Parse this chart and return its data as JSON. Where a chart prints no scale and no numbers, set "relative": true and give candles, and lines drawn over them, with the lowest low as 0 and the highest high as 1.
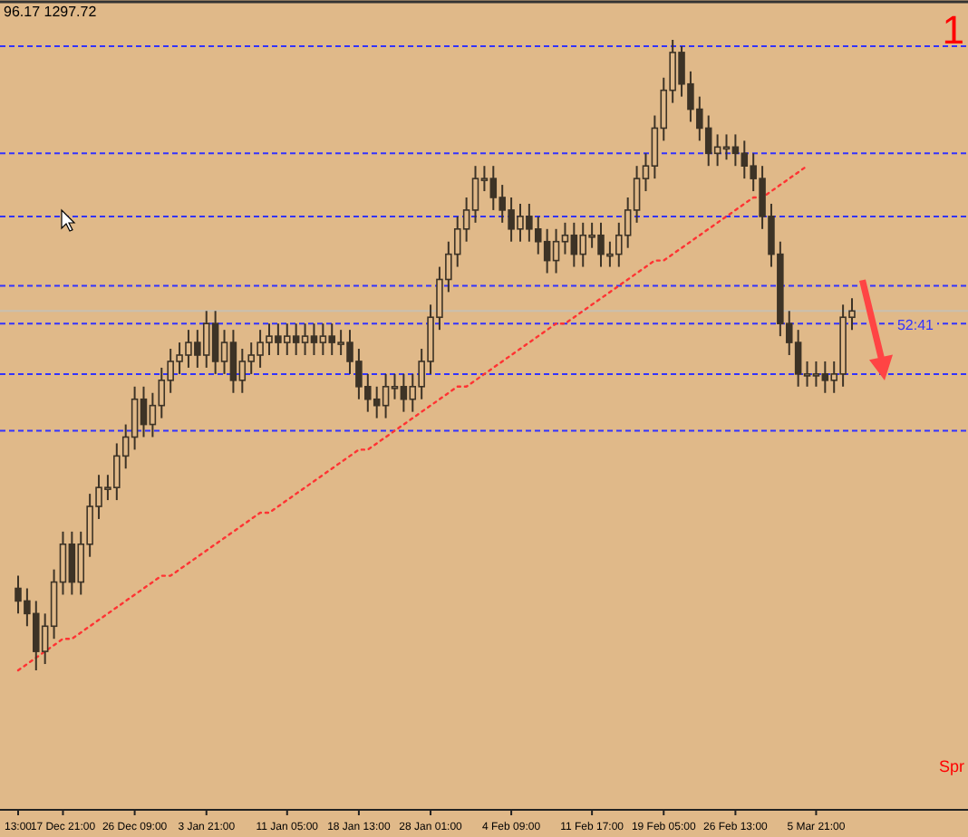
{
  "chart_data": {
    "type": "candlestick",
    "relative": true,
    "categories": [
      "13:00",
      null,
      null,
      null,
      null,
      "17 Dec 21:00",
      null,
      null,
      null,
      null,
      null,
      null,
      null,
      "26 Dec 09:00",
      null,
      null,
      null,
      null,
      null,
      null,
      null,
      "3 Jan 21:00",
      null,
      null,
      null,
      null,
      null,
      null,
      null,
      null,
      "11 Jan 05:00",
      null,
      null,
      null,
      null,
      null,
      null,
      null,
      "18 Jan 13:00",
      null,
      null,
      null,
      null,
      null,
      null,
      null,
      "28 Jan 01:00",
      null,
      null,
      null,
      null,
      null,
      null,
      null,
      null,
      "4 Feb 09:00",
      null,
      null,
      null,
      null,
      null,
      null,
      null,
      null,
      "11 Feb 17:00",
      null,
      null,
      null,
      null,
      null,
      null,
      null,
      "19 Feb 05:00",
      null,
      null,
      null,
      null,
      null,
      null,
      null,
      "26 Feb 13:00",
      null,
      null,
      null,
      null,
      null,
      null,
      null,
      null,
      "5 Mar 21:00",
      null,
      null,
      null,
      null
    ],
    "series": [
      {
        "color": "#3d3326",
        "ohlc": [
          [
            0.13,
            0.15,
            0.09,
            0.11
          ],
          [
            0.11,
            0.13,
            0.07,
            0.09
          ],
          [
            0.09,
            0.11,
            0,
            0.03
          ],
          [
            0.03,
            0.09,
            0.01,
            0.07
          ],
          [
            0.07,
            0.16,
            0.05,
            0.14
          ],
          [
            0.14,
            0.22,
            0.12,
            0.2
          ],
          [
            0.2,
            0.22,
            0.12,
            0.14
          ],
          [
            0.14,
            0.22,
            0.12,
            0.2
          ],
          [
            0.2,
            0.28,
            0.18,
            0.26
          ],
          [
            0.26,
            0.31,
            0.24,
            0.29
          ],
          [
            0.29,
            0.31,
            0.27,
            0.29
          ],
          [
            0.29,
            0.36,
            0.27,
            0.34
          ],
          [
            0.34,
            0.39,
            0.32,
            0.37
          ],
          [
            0.37,
            0.45,
            0.35,
            0.43
          ],
          [
            0.43,
            0.45,
            0.37,
            0.39
          ],
          [
            0.39,
            0.44,
            0.37,
            0.42
          ],
          [
            0.42,
            0.48,
            0.4,
            0.46
          ],
          [
            0.46,
            0.51,
            0.44,
            0.49
          ],
          [
            0.49,
            0.52,
            0.47,
            0.5
          ],
          [
            0.5,
            0.54,
            0.48,
            0.52
          ],
          [
            0.52,
            0.54,
            0.48,
            0.5
          ],
          [
            0.5,
            0.57,
            0.48,
            0.55
          ],
          [
            0.55,
            0.57,
            0.47,
            0.49
          ],
          [
            0.49,
            0.54,
            0.47,
            0.52
          ],
          [
            0.52,
            0.54,
            0.44,
            0.46
          ],
          [
            0.46,
            0.51,
            0.44,
            0.49
          ],
          [
            0.49,
            0.52,
            0.47,
            0.5
          ],
          [
            0.5,
            0.54,
            0.48,
            0.52
          ],
          [
            0.52,
            0.55,
            0.5,
            0.53
          ],
          [
            0.53,
            0.55,
            0.5,
            0.52
          ],
          [
            0.52,
            0.55,
            0.5,
            0.53
          ],
          [
            0.53,
            0.55,
            0.5,
            0.52
          ],
          [
            0.52,
            0.55,
            0.5,
            0.53
          ],
          [
            0.53,
            0.55,
            0.5,
            0.52
          ],
          [
            0.52,
            0.55,
            0.5,
            0.53
          ],
          [
            0.53,
            0.55,
            0.5,
            0.52
          ],
          [
            0.52,
            0.54,
            0.5,
            0.52
          ],
          [
            0.52,
            0.54,
            0.47,
            0.49
          ],
          [
            0.49,
            0.51,
            0.43,
            0.45
          ],
          [
            0.45,
            0.47,
            0.41,
            0.43
          ],
          [
            0.43,
            0.45,
            0.4,
            0.42
          ],
          [
            0.42,
            0.47,
            0.4,
            0.45
          ],
          [
            0.45,
            0.47,
            0.43,
            0.45
          ],
          [
            0.45,
            0.47,
            0.41,
            0.43
          ],
          [
            0.43,
            0.47,
            0.41,
            0.45
          ],
          [
            0.45,
            0.51,
            0.43,
            0.49
          ],
          [
            0.49,
            0.58,
            0.47,
            0.56
          ],
          [
            0.56,
            0.64,
            0.54,
            0.62
          ],
          [
            0.62,
            0.68,
            0.6,
            0.66
          ],
          [
            0.66,
            0.72,
            0.64,
            0.7
          ],
          [
            0.7,
            0.75,
            0.68,
            0.73
          ],
          [
            0.73,
            0.8,
            0.71,
            0.78
          ],
          [
            0.78,
            0.8,
            0.76,
            0.78
          ],
          [
            0.78,
            0.8,
            0.73,
            0.75
          ],
          [
            0.75,
            0.77,
            0.71,
            0.73
          ],
          [
            0.73,
            0.75,
            0.68,
            0.7
          ],
          [
            0.7,
            0.74,
            0.68,
            0.72
          ],
          [
            0.72,
            0.74,
            0.68,
            0.7
          ],
          [
            0.7,
            0.72,
            0.66,
            0.68
          ],
          [
            0.68,
            0.7,
            0.63,
            0.65
          ],
          [
            0.65,
            0.7,
            0.63,
            0.68
          ],
          [
            0.68,
            0.71,
            0.66,
            0.69
          ],
          [
            0.69,
            0.71,
            0.64,
            0.66
          ],
          [
            0.66,
            0.71,
            0.64,
            0.69
          ],
          [
            0.69,
            0.71,
            0.67,
            0.69
          ],
          [
            0.69,
            0.71,
            0.64,
            0.66
          ],
          [
            0.66,
            0.68,
            0.64,
            0.66
          ],
          [
            0.66,
            0.71,
            0.64,
            0.69
          ],
          [
            0.69,
            0.75,
            0.67,
            0.73
          ],
          [
            0.73,
            0.8,
            0.71,
            0.78
          ],
          [
            0.78,
            0.82,
            0.76,
            0.8
          ],
          [
            0.8,
            0.88,
            0.78,
            0.86
          ],
          [
            0.86,
            0.94,
            0.84,
            0.92
          ],
          [
            0.92,
            1,
            0.9,
            0.98
          ],
          [
            0.98,
            0.99,
            0.91,
            0.93
          ],
          [
            0.93,
            0.95,
            0.87,
            0.89
          ],
          [
            0.89,
            0.91,
            0.84,
            0.86
          ],
          [
            0.86,
            0.88,
            0.8,
            0.82
          ],
          [
            0.82,
            0.85,
            0.8,
            0.83
          ],
          [
            0.83,
            0.85,
            0.81,
            0.83
          ],
          [
            0.83,
            0.85,
            0.8,
            0.82
          ],
          [
            0.82,
            0.84,
            0.78,
            0.8
          ],
          [
            0.8,
            0.82,
            0.76,
            0.78
          ],
          [
            0.78,
            0.8,
            0.7,
            0.72
          ],
          [
            0.72,
            0.74,
            0.64,
            0.66
          ],
          [
            0.66,
            0.68,
            0.53,
            0.55
          ],
          [
            0.55,
            0.57,
            0.5,
            0.52
          ],
          [
            0.52,
            0.54,
            0.45,
            0.47
          ],
          [
            0.47,
            0.49,
            0.45,
            0.47
          ],
          [
            0.47,
            0.49,
            0.45,
            0.47
          ],
          [
            0.47,
            0.49,
            0.44,
            0.46
          ],
          [
            0.46,
            0.49,
            0.44,
            0.47
          ],
          [
            0.47,
            0.58,
            0.45,
            0.56
          ],
          [
            0.56,
            0.59,
            0.54,
            0.57
          ]
        ]
      },
      {
        "type": "line",
        "color": "#ff3333",
        "line_style": "dotted",
        "values": [
          0,
          0.01,
          0.02,
          0.03,
          0.04,
          0.05,
          0.05,
          0.06,
          0.07,
          0.08,
          0.09,
          0.1,
          0.11,
          0.12,
          0.13,
          0.14,
          0.15,
          0.15,
          0.16,
          0.17,
          0.18,
          0.19,
          0.2,
          0.21,
          0.22,
          0.23,
          0.24,
          0.25,
          0.25,
          0.26,
          0.27,
          0.28,
          0.29,
          0.3,
          0.31,
          0.32,
          0.33,
          0.34,
          0.35,
          0.35,
          0.36,
          0.37,
          0.38,
          0.39,
          0.4,
          0.41,
          0.42,
          0.43,
          0.44,
          0.45,
          0.45,
          0.46,
          0.47,
          0.48,
          0.49,
          0.5,
          0.51,
          0.52,
          0.53,
          0.54,
          0.55,
          0.55,
          0.56,
          0.57,
          0.58,
          0.59,
          0.6,
          0.61,
          0.62,
          0.63,
          0.64,
          0.65,
          0.65,
          0.66,
          0.67,
          0.68,
          0.69,
          0.7,
          0.71,
          0.72,
          0.73,
          0.74,
          0.75,
          0.75,
          0.76,
          0.77,
          0.78,
          0.79,
          0.8,
          null,
          null,
          null,
          null,
          null
        ]
      }
    ],
    "ref_lines": [
      {
        "axis": "y",
        "value": 0.99,
        "color": "#3333ff",
        "line_style": "dashed"
      },
      {
        "axis": "y",
        "value": 0.82,
        "color": "#3333ff",
        "line_style": "dashed"
      },
      {
        "axis": "y",
        "value": 0.72,
        "color": "#3333ff",
        "line_style": "dashed"
      },
      {
        "axis": "y",
        "value": 0.61,
        "color": "#3333ff",
        "line_style": "dashed"
      },
      {
        "axis": "y",
        "value": 0.57,
        "color": "#c8c0b0",
        "line_style": "solid"
      },
      {
        "axis": "y",
        "value": 0.55,
        "color": "#3333ff",
        "line_style": "dashed"
      },
      {
        "axis": "y",
        "value": 0.47,
        "color": "#3333ff",
        "line_style": "dashed"
      },
      {
        "axis": "y",
        "value": 0.38,
        "color": "#3333ff",
        "line_style": "dashed"
      }
    ],
    "annotations": [
      "96.17 1297.72",
      "1",
      "52:41",
      "Spr"
    ]
  }
}
